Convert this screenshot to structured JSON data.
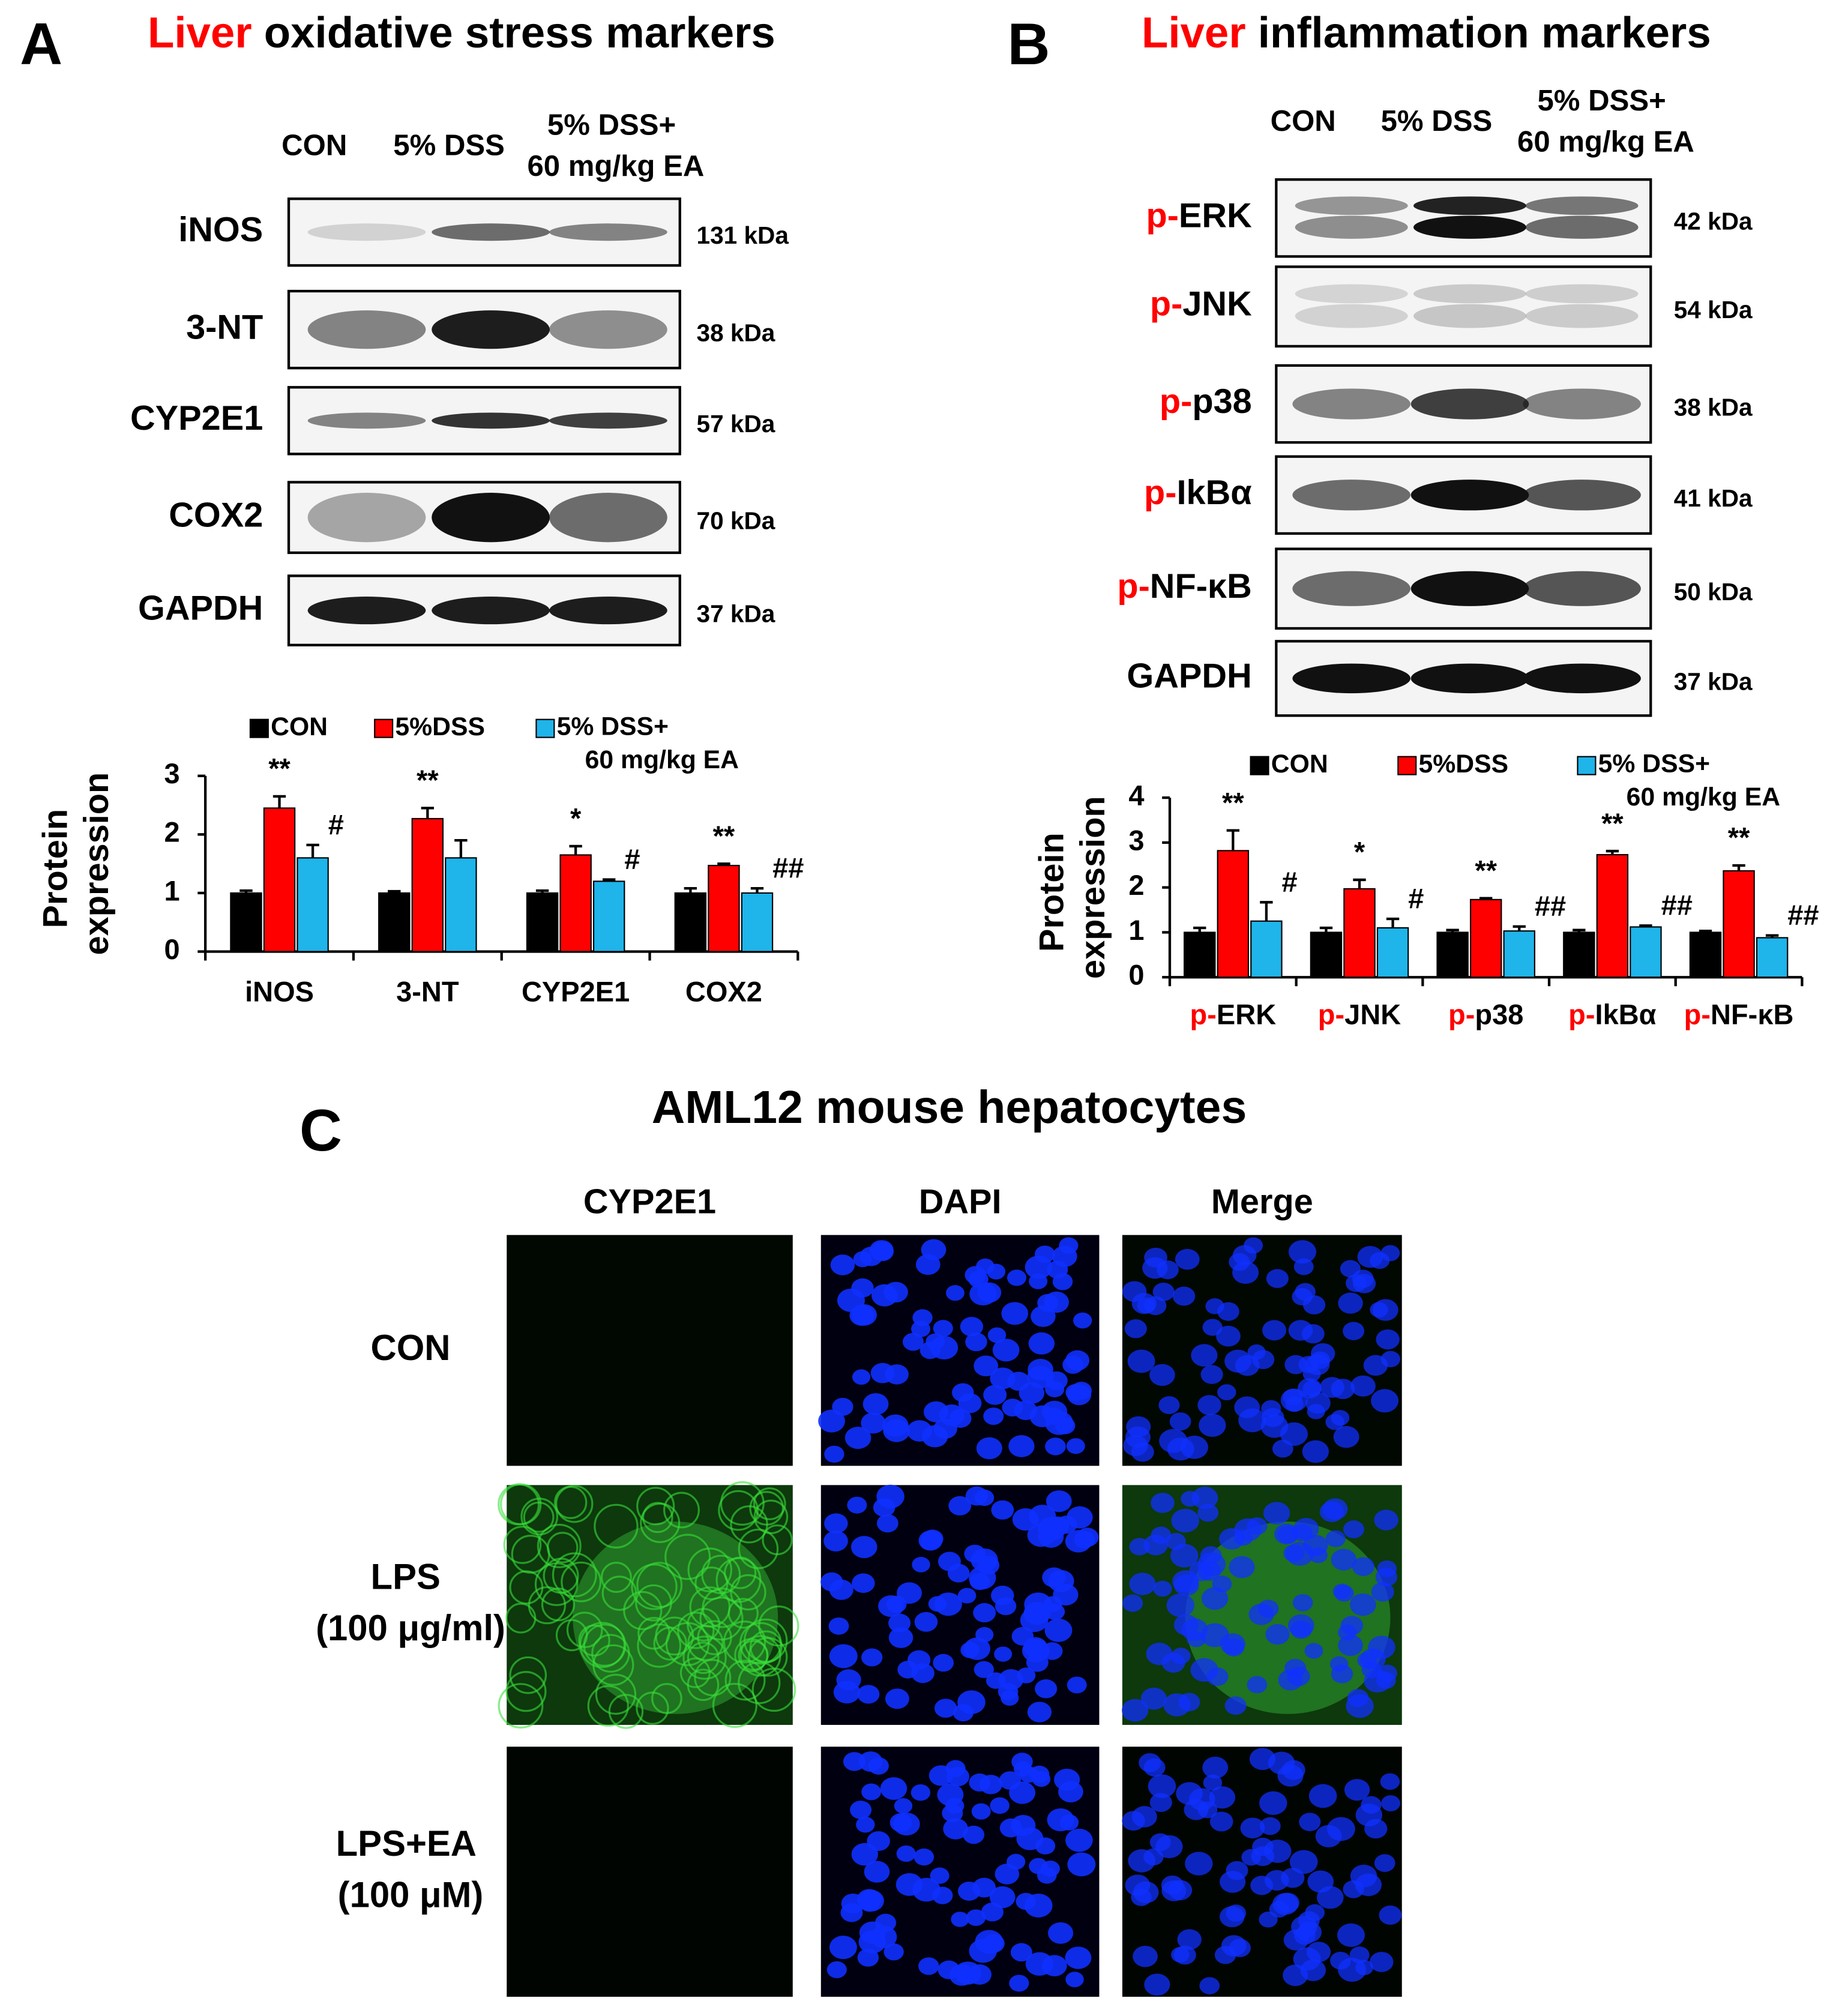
{
  "panel_a": {
    "letter": "A",
    "title": {
      "highlight": "Liver",
      "rest": "oxidative stress markers"
    },
    "lanes": [
      "CON",
      "5%  DSS",
      "5%  DSS+\n60 mg/kg EA"
    ],
    "blots": [
      {
        "label": "iNOS",
        "size": "131 kDa"
      },
      {
        "label": "3-NT",
        "size": "38 kDa"
      },
      {
        "label": "CYP2E1",
        "size": "57 kDa"
      },
      {
        "label": "COX2",
        "size": "70 kDa"
      },
      {
        "label": "GAPDH",
        "size": "37 kDa"
      }
    ]
  },
  "panel_b": {
    "letter": "B",
    "title": {
      "highlight": "Liver",
      "rest": "inflammation markers"
    },
    "lanes": [
      "CON",
      "5%  DSS",
      "5%  DSS+\n60 mg/kg EA"
    ],
    "blots": [
      {
        "label": "p-ERK",
        "size": "42 kDa"
      },
      {
        "label": "p-JNK",
        "size": "54 kDa"
      },
      {
        "label": "p-p38",
        "size": "38 kDa"
      },
      {
        "label": "p-IkBα",
        "size": "41 kDa"
      },
      {
        "label": "p-NF-κB",
        "size": "50 kDa"
      },
      {
        "label": "GAPDH",
        "size": "37 kDa"
      }
    ]
  },
  "panel_c": {
    "letter": "C",
    "title": "AML12 mouse hepatocytes",
    "columns": [
      "CYP2E1",
      "DAPI",
      "Merge"
    ],
    "rows": [
      "CON",
      "LPS\n(100 μg/ml)",
      "LPS+EA\n(100 μM)"
    ]
  },
  "chart_data": [
    {
      "type": "bar",
      "y_label": "Protein\nexpression",
      "categories": [
        "iNOS",
        "3-NT",
        "CYP2E1",
        "COX2"
      ],
      "series": [
        {
          "name": "CON",
          "color": "#000000",
          "values": [
            1.0,
            1.0,
            1.0,
            1.0
          ],
          "errors": [
            0.04,
            0.03,
            0.04,
            0.08
          ],
          "annotations": [
            null,
            null,
            null,
            null
          ]
        },
        {
          "name": "5%DSS",
          "color": "#ff0000",
          "values": [
            2.45,
            2.27,
            1.65,
            1.47
          ],
          "errors": [
            0.2,
            0.18,
            0.15,
            0.03
          ],
          "annotations": [
            "**",
            "**",
            "*",
            "**"
          ]
        },
        {
          "name": "5% DSS+\n60 mg/kg EA",
          "color": "#1fb4ea",
          "values": [
            1.6,
            1.6,
            1.2,
            1.0
          ],
          "errors": [
            0.22,
            0.3,
            0.03,
            0.08
          ],
          "annotations": [
            "#",
            null,
            "#",
            "##"
          ]
        }
      ],
      "ylim": [
        0,
        3
      ],
      "yticks": [
        0,
        1,
        2,
        3
      ]
    },
    {
      "type": "bar",
      "y_label": "Protein\nexpression",
      "categories": [
        "p-ERK",
        "p-JNK",
        "p-p38",
        "p-IkBα",
        "p-NF-κB"
      ],
      "series": [
        {
          "name": "CON",
          "color": "#000000",
          "values": [
            1.0,
            1.0,
            1.0,
            1.0,
            1.0
          ],
          "errors": [
            0.1,
            0.1,
            0.05,
            0.05,
            0.03
          ],
          "annotations": [
            null,
            null,
            null,
            null,
            null
          ]
        },
        {
          "name": "5%DSS",
          "color": "#ff0000",
          "values": [
            2.82,
            1.97,
            1.73,
            2.73,
            2.37
          ],
          "errors": [
            0.45,
            0.2,
            0.03,
            0.08,
            0.12
          ],
          "annotations": [
            "**",
            "*",
            "**",
            "**",
            "**"
          ]
        },
        {
          "name": "5% DSS+\n60 mg/kg EA",
          "color": "#1fb4ea",
          "values": [
            1.25,
            1.1,
            1.03,
            1.12,
            0.88
          ],
          "errors": [
            0.42,
            0.2,
            0.1,
            0.03,
            0.05
          ],
          "annotations": [
            "#",
            "#",
            "##",
            "##",
            "##"
          ]
        }
      ],
      "ylim": [
        0,
        4
      ],
      "yticks": [
        0,
        1,
        2,
        3,
        4
      ]
    }
  ]
}
